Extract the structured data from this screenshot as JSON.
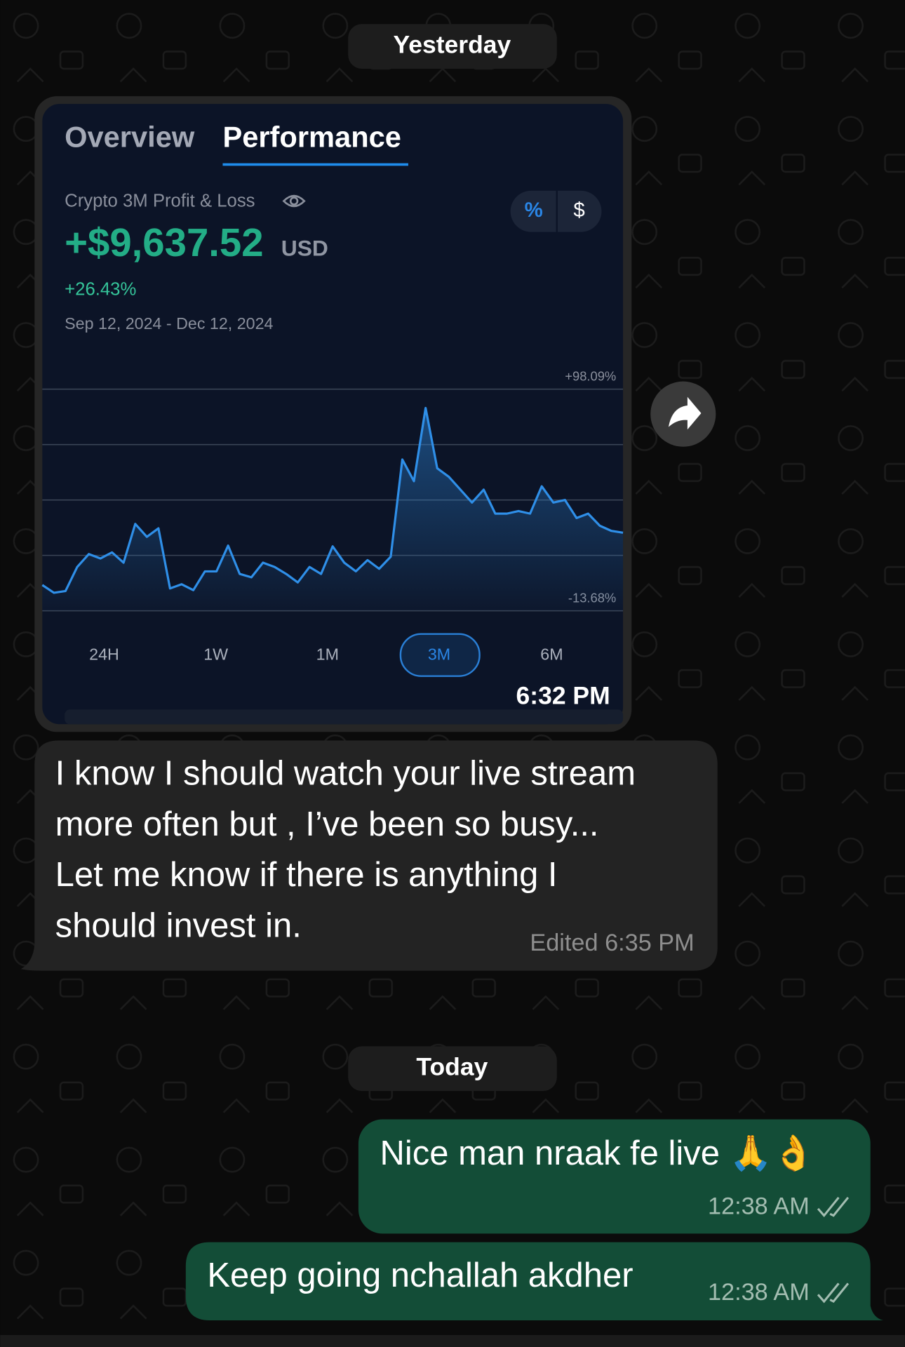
{
  "day_labels": [
    "Yesterday",
    "Today"
  ],
  "shared_image": {
    "tabs": [
      "Overview",
      "Performance"
    ],
    "pnl_title": "Crypto 3M Profit & Loss",
    "toggle": [
      "%",
      "$"
    ],
    "amount": "+$9,637.52",
    "currency": "USD",
    "change": "+26.43%",
    "date_range": "Sep 12, 2024 - Dec 12, 2024",
    "ranges": [
      "24H",
      "1W",
      "1M",
      "3M",
      "6M"
    ],
    "time": "6:32 PM"
  },
  "chart_data": {
    "type": "line",
    "color": "#2f8fe8",
    "ylim": [
      -13.68,
      98.09
    ],
    "yticks": [
      {
        "value": 98.09,
        "label": "+98.09%"
      },
      {
        "value": -13.68,
        "label": "-13.68%"
      }
    ],
    "values": [
      -0.7,
      -4.6,
      -3.7,
      8.4,
      14.9,
      12.7,
      15.8,
      10.6,
      30.1,
      23.6,
      27.9,
      -2.4,
      -0.3,
      -3.3,
      6.2,
      6.2,
      19.2,
      4.9,
      3.2,
      10.6,
      8.4,
      4.9,
      0.6,
      8.4,
      4.9,
      18.8,
      10.6,
      6.2,
      11.9,
      7.5,
      13.6,
      62.6,
      51.7,
      88.6,
      58.2,
      53.9,
      47.4,
      40.9,
      47.4,
      35.3,
      35.3,
      36.6,
      35.3,
      49.1,
      40.9,
      42.2,
      33.1,
      35.3,
      29.2,
      26.6,
      25.7
    ]
  },
  "incoming": {
    "lines": [
      "I know I should watch your live stream",
      "more often but ,  I’ve been so busy...",
      "Let me know if there is anything I",
      "should invest in."
    ],
    "meta": "Edited 6:35 PM"
  },
  "outgoing": [
    {
      "text": "Nice man nraak fe live 🙏👌",
      "time": "12:38 AM"
    },
    {
      "text": "Keep going nchallah akdher",
      "time": "12:38 AM"
    }
  ]
}
